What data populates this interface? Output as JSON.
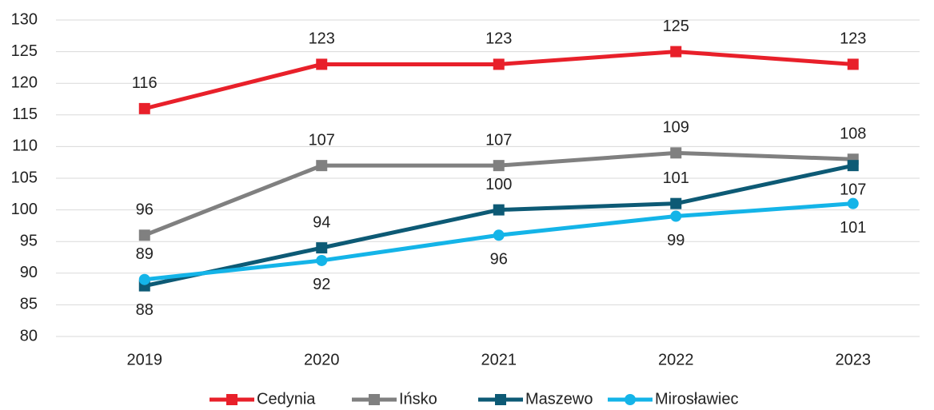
{
  "chart_data": {
    "type": "line",
    "categories": [
      "2019",
      "2020",
      "2021",
      "2022",
      "2023"
    ],
    "series": [
      {
        "name": "Cedynia",
        "color": "#e8202a",
        "marker": "square",
        "values": [
          116,
          123,
          123,
          125,
          123
        ]
      },
      {
        "name": "Ińsko",
        "color": "#808080",
        "marker": "square",
        "values": [
          96,
          107,
          107,
          109,
          108
        ]
      },
      {
        "name": "Maszewo",
        "color": "#0d5a75",
        "marker": "square",
        "values": [
          88,
          94,
          100,
          101,
          107
        ]
      },
      {
        "name": "Mirosławiec",
        "color": "#14b4e8",
        "marker": "circle",
        "values": [
          89,
          92,
          96,
          99,
          101
        ]
      }
    ],
    "ylim": [
      80,
      130
    ],
    "yticks": [
      80,
      85,
      90,
      95,
      100,
      105,
      110,
      115,
      120,
      125,
      130
    ],
    "grid": true,
    "legend": "bottom"
  }
}
